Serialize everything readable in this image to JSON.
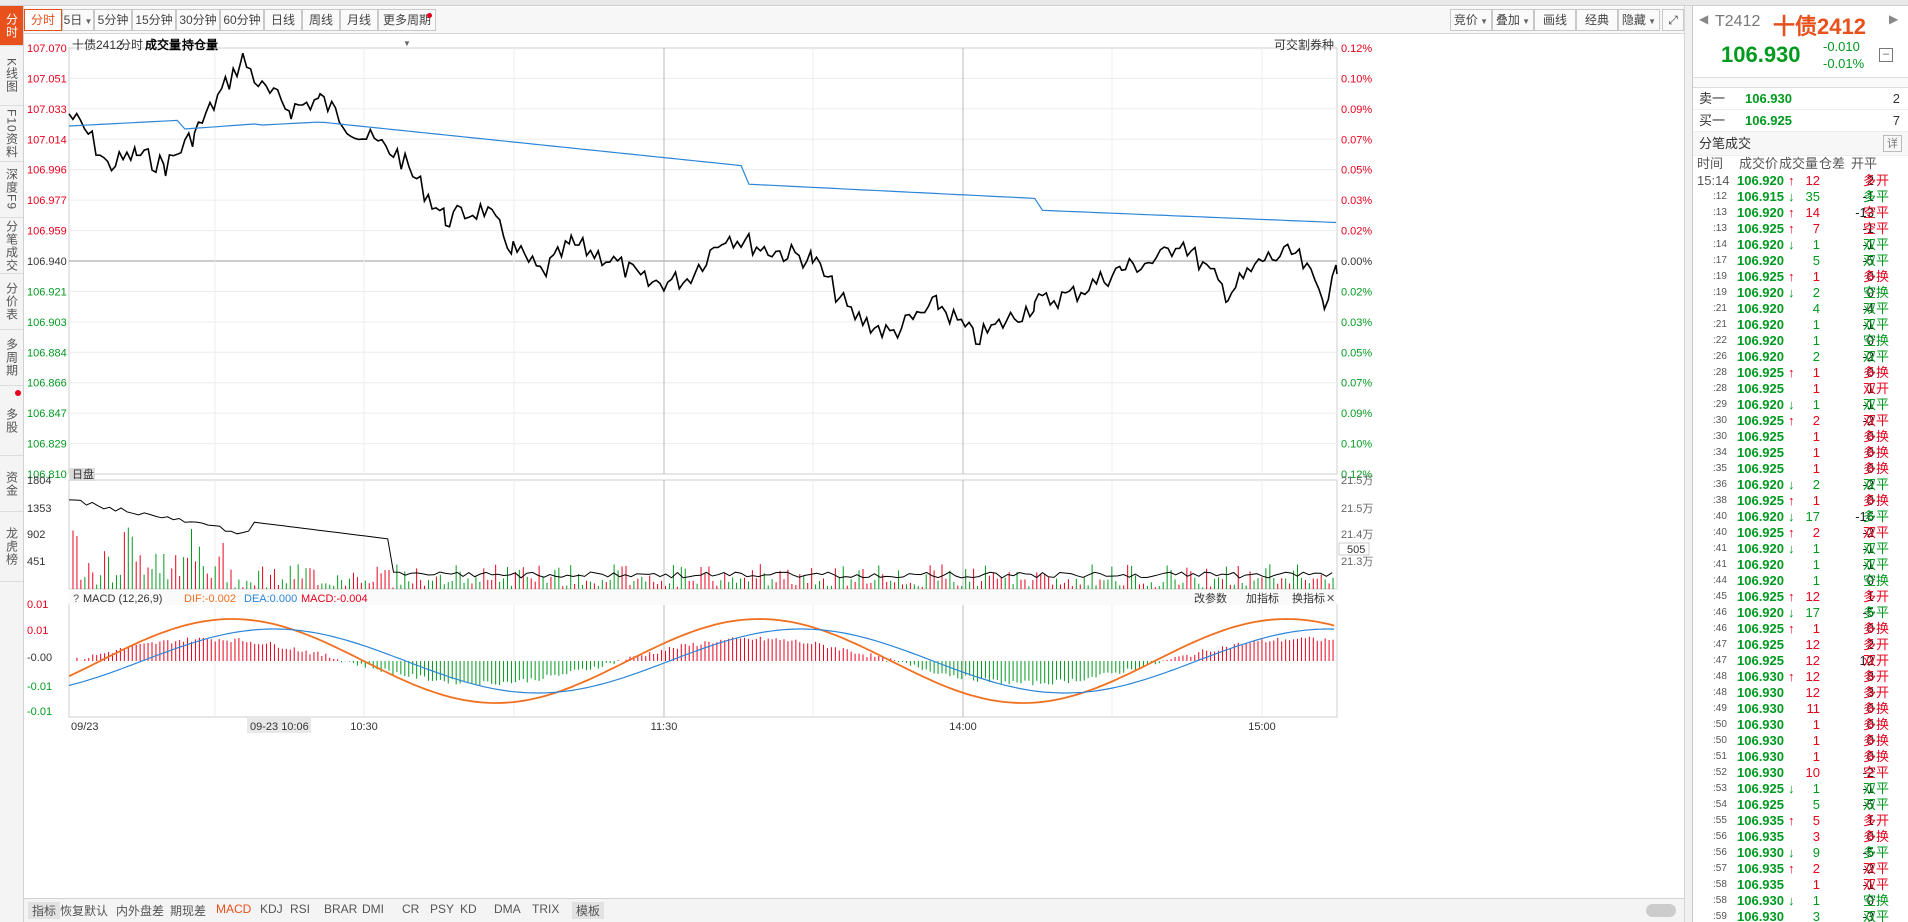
{
  "vtabs": [
    {
      "label": "分时",
      "active": true
    },
    {
      "label": "K线图"
    },
    {
      "label": "F10资料"
    },
    {
      "label": "深度F9"
    },
    {
      "label": "分笔成交"
    },
    {
      "label": "分价表"
    },
    {
      "label": "多周期"
    },
    {
      "label": "多股",
      "dot": true
    },
    {
      "label": "资金"
    },
    {
      "label": "龙虎榜"
    }
  ],
  "toolbar": {
    "left": [
      "分时",
      "5日",
      "5分钟",
      "15分钟",
      "30分钟",
      "60分钟",
      "日线",
      "周线",
      "月线",
      "更多周期"
    ],
    "right": [
      "竞价",
      "叠加",
      "画线",
      "经典",
      "隐藏"
    ]
  },
  "chart": {
    "title": "十债2412",
    "tabs": [
      "分时",
      "成交量",
      "持仓量"
    ],
    "tag_right": "可交割券种",
    "yaxis_left": [
      "107.070",
      "107.051",
      "107.033",
      "107.014",
      "106.996",
      "106.977",
      "106.959",
      "106.940",
      "106.921",
      "106.903",
      "106.884",
      "106.866",
      "106.847",
      "106.829",
      "106.810"
    ],
    "yaxis_right": [
      "0.12%",
      "0.10%",
      "0.09%",
      "0.07%",
      "0.05%",
      "0.03%",
      "0.02%",
      "0.00%",
      "0.02%",
      "0.03%",
      "0.05%",
      "0.07%",
      "0.09%",
      "0.10%",
      "0.12%"
    ],
    "vol_label": "日盘",
    "vol_axis_left": [
      "1804",
      "1353",
      "902",
      "451"
    ],
    "vol_axis_right": [
      "21.5万",
      "21.5万",
      "21.4万",
      "21.3万"
    ],
    "vol_axis_right_current": "505",
    "macd_title": "MACD (12,26,9)",
    "dif": "DIF:-0.002",
    "dea": "DEA:0.000",
    "macd": "MACD:-0.004",
    "macd_btns": [
      "改参数",
      "加指标",
      "换指标"
    ],
    "macd_axis": [
      "0.01",
      "0.01",
      "-0.00",
      "-0.01",
      "-0.01"
    ],
    "xlabels": [
      "09/23",
      "10:30",
      "11:30",
      "14:00",
      "15:00"
    ],
    "cursor_time": "09-23 10:06"
  },
  "bottombar": [
    "指标",
    "恢复默认",
    "内外盘差",
    "期现差",
    "MACD",
    "KDJ",
    "RSI",
    "BRAR",
    "DMI",
    "CR",
    "PSY",
    "KD",
    "DMA",
    "TRIX",
    "模板"
  ],
  "quote": {
    "code": "T2412",
    "name": "十债2412",
    "price": "106.930",
    "chg": "-0.010",
    "pct": "-0.01%"
  },
  "book": {
    "sell": {
      "label": "卖一",
      "price": "106.930",
      "vol": "2"
    },
    "buy": {
      "label": "买一",
      "price": "106.925",
      "vol": "7"
    }
  },
  "ticks_title": "分笔成交",
  "ticks_detail": "详",
  "ticks_header": [
    "时间",
    "成交价",
    "成交量",
    "仓差",
    "开平"
  ],
  "ticks": [
    [
      "15:14",
      "106.920",
      "up",
      "12",
      "2",
      "多开",
      "r"
    ],
    [
      ":12",
      "106.915",
      "dn",
      "35",
      "-1",
      "多平",
      "g"
    ],
    [
      ":13",
      "106.920",
      "up",
      "14",
      "-13",
      "空平",
      "r"
    ],
    [
      ":13",
      "106.925",
      "up",
      "7",
      "-1",
      "空平",
      "r"
    ],
    [
      ":14",
      "106.920",
      "dn",
      "1",
      "-1",
      "双平",
      "g"
    ],
    [
      ":17",
      "106.920",
      "",
      "5",
      "-5",
      "双平",
      "g"
    ],
    [
      ":19",
      "106.925",
      "up",
      "1",
      "0",
      "多换",
      "r"
    ],
    [
      ":19",
      "106.920",
      "dn",
      "2",
      "0",
      "空换",
      "g"
    ],
    [
      ":21",
      "106.920",
      "",
      "4",
      "-4",
      "双平",
      "g"
    ],
    [
      ":21",
      "106.920",
      "",
      "1",
      "-1",
      "双平",
      "g"
    ],
    [
      ":22",
      "106.920",
      "",
      "1",
      "0",
      "空换",
      "g"
    ],
    [
      ":26",
      "106.920",
      "",
      "2",
      "-2",
      "双平",
      "g"
    ],
    [
      ":28",
      "106.925",
      "up",
      "1",
      "0",
      "多换",
      "r"
    ],
    [
      ":28",
      "106.925",
      "",
      "1",
      "1",
      "双开",
      "r"
    ],
    [
      ":29",
      "106.920",
      "dn",
      "1",
      "-1",
      "双平",
      "g"
    ],
    [
      ":30",
      "106.925",
      "up",
      "2",
      "-2",
      "双平",
      "r"
    ],
    [
      ":30",
      "106.925",
      "",
      "1",
      "0",
      "多换",
      "r"
    ],
    [
      ":34",
      "106.925",
      "",
      "1",
      "0",
      "多换",
      "r"
    ],
    [
      ":35",
      "106.925",
      "",
      "1",
      "0",
      "多换",
      "r"
    ],
    [
      ":36",
      "106.920",
      "dn",
      "2",
      "-2",
      "双平",
      "g"
    ],
    [
      ":38",
      "106.925",
      "up",
      "1",
      "0",
      "多换",
      "r"
    ],
    [
      ":40",
      "106.920",
      "dn",
      "17",
      "-16",
      "多平",
      "g"
    ],
    [
      ":40",
      "106.925",
      "up",
      "2",
      "-2",
      "双平",
      "r"
    ],
    [
      ":41",
      "106.920",
      "dn",
      "1",
      "-1",
      "双平",
      "g"
    ],
    [
      ":41",
      "106.920",
      "",
      "1",
      "-1",
      "双平",
      "g"
    ],
    [
      ":44",
      "106.920",
      "",
      "1",
      "0",
      "空换",
      "g"
    ],
    [
      ":45",
      "106.925",
      "up",
      "12",
      "1",
      "多开",
      "r"
    ],
    [
      ":46",
      "106.920",
      "dn",
      "17",
      "-5",
      "多平",
      "g"
    ],
    [
      ":46",
      "106.925",
      "up",
      "1",
      "0",
      "多换",
      "r"
    ],
    [
      ":47",
      "106.925",
      "",
      "12",
      "2",
      "多开",
      "r"
    ],
    [
      ":47",
      "106.925",
      "",
      "12",
      "12",
      "双开",
      "r"
    ],
    [
      ":48",
      "106.930",
      "up",
      "12",
      "8",
      "多开",
      "r"
    ],
    [
      ":48",
      "106.930",
      "",
      "12",
      "3",
      "多开",
      "r"
    ],
    [
      ":49",
      "106.930",
      "",
      "11",
      "0",
      "多换",
      "r"
    ],
    [
      ":50",
      "106.930",
      "",
      "1",
      "0",
      "多换",
      "r"
    ],
    [
      ":50",
      "106.930",
      "",
      "1",
      "0",
      "多换",
      "r"
    ],
    [
      ":51",
      "106.930",
      "",
      "1",
      "0",
      "多换",
      "r"
    ],
    [
      ":52",
      "106.930",
      "",
      "10",
      "-2",
      "空平",
      "r"
    ],
    [
      ":53",
      "106.925",
      "dn",
      "1",
      "-1",
      "双平",
      "g"
    ],
    [
      ":54",
      "106.925",
      "",
      "5",
      "-5",
      "双平",
      "g"
    ],
    [
      ":55",
      "106.935",
      "up",
      "5",
      "1",
      "多开",
      "r"
    ],
    [
      ":56",
      "106.935",
      "",
      "3",
      "0",
      "多换",
      "r"
    ],
    [
      ":56",
      "106.930",
      "dn",
      "9",
      "-5",
      "多平",
      "g"
    ],
    [
      ":57",
      "106.935",
      "up",
      "2",
      "-2",
      "双平",
      "r"
    ],
    [
      ":58",
      "106.935",
      "",
      "1",
      "-1",
      "双平",
      "r"
    ],
    [
      ":58",
      "106.930",
      "dn",
      "1",
      "0",
      "空换",
      "g"
    ],
    [
      ":59",
      "106.930",
      "",
      "3",
      "-3",
      "双平",
      "g"
    ]
  ],
  "colors": {
    "up": "#e8001c",
    "down": "#009a1f",
    "accent": "#e8501c",
    "price_line": "#000000",
    "avg_line": "#2b86d9",
    "dif": "#f07020",
    "dea": "#2b86d9"
  }
}
